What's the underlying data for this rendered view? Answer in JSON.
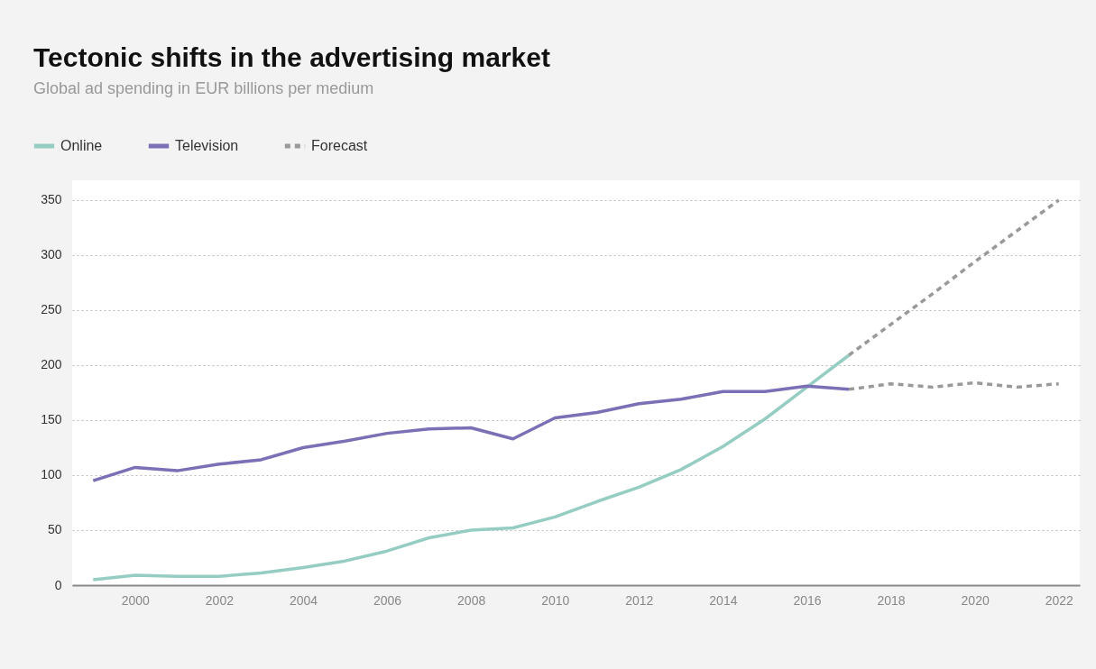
{
  "chart_data": {
    "type": "line",
    "title": "Tectonic shifts in the advertising market",
    "subtitle": "Global ad spending in EUR billions per medium",
    "x": [
      1999,
      2000,
      2001,
      2002,
      2003,
      2004,
      2005,
      2006,
      2007,
      2008,
      2009,
      2010,
      2011,
      2012,
      2013,
      2014,
      2015,
      2016,
      2017
    ],
    "series": [
      {
        "name": "Online",
        "color": "#96cdc3",
        "values": [
          5,
          9,
          8,
          8,
          11,
          16,
          22,
          31,
          43,
          50,
          52,
          62,
          76,
          89,
          105,
          126,
          151,
          180,
          209
        ]
      },
      {
        "name": "Television",
        "color": "#7b6fb5",
        "values": [
          95,
          107,
          104,
          110,
          114,
          125,
          131,
          138,
          142,
          143,
          133,
          152,
          157,
          165,
          169,
          176,
          176,
          181,
          178
        ]
      },
      {
        "name": "Forecast",
        "color": "#999999",
        "line_style": "dashed",
        "x": [
          2017,
          2018,
          2019,
          2020,
          2021,
          2022
        ],
        "values": [
          209,
          237,
          265,
          294,
          322,
          350
        ]
      },
      {
        "color": "#999999",
        "line_style": "dashed",
        "x": [
          2017,
          2018,
          2019,
          2020,
          2021,
          2022
        ],
        "values": [
          178,
          183,
          180,
          184,
          180,
          183
        ]
      }
    ],
    "xlim": [
      1998.5,
      2022.5
    ],
    "xticks": [
      2000,
      2002,
      2004,
      2006,
      2008,
      2010,
      2012,
      2014,
      2016,
      2018,
      2020,
      2022
    ],
    "ylim": [
      0,
      368
    ],
    "yticks": [
      0,
      50,
      100,
      150,
      200,
      250,
      300,
      350
    ],
    "grid": "y",
    "legend": "top left",
    "marker": "none",
    "line_style": "solid"
  }
}
